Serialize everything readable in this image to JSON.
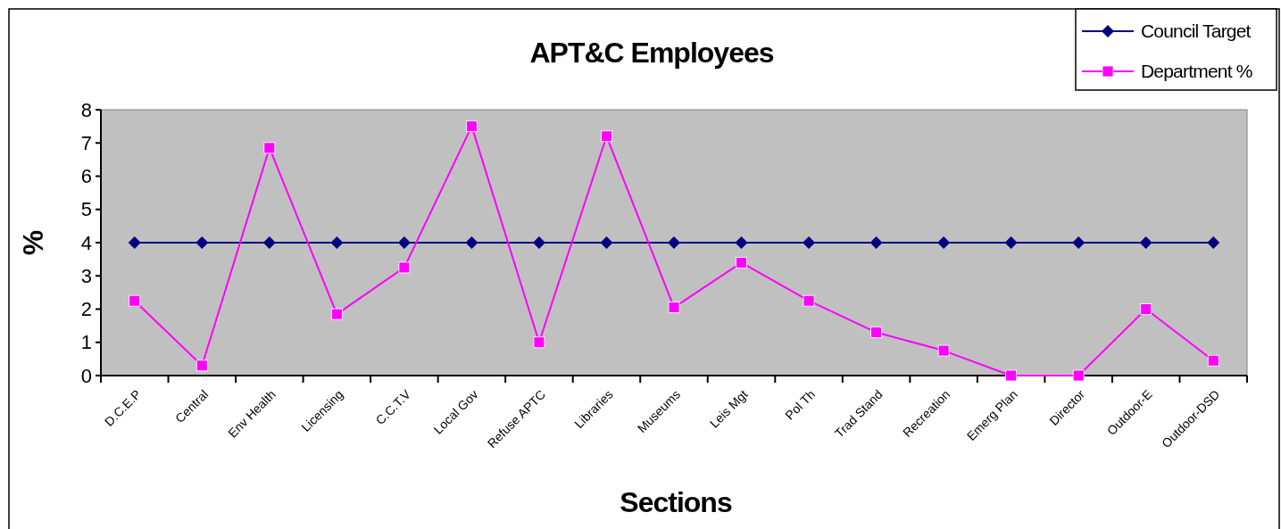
{
  "chart_data": {
    "type": "line",
    "title": "APT&C Employees",
    "xlabel": "Sections",
    "ylabel": "%",
    "categories": [
      "D.C.E.P",
      "Central",
      "Env Health",
      "Licensing",
      "C.C.T.V",
      "Local Gov",
      "Refuse APTC",
      "Libraries",
      "Museums",
      "Leis Mgt",
      "Pol Th",
      "Trad Stand",
      "Recreation",
      "Emerg Plan",
      "Director",
      "Outdoor-E",
      "Outdoor-DSD"
    ],
    "series": [
      {
        "name": "Council Target",
        "color": "#000080",
        "marker": "diamond",
        "values": [
          4,
          4,
          4,
          4,
          4,
          4,
          4,
          4,
          4,
          4,
          4,
          4,
          4,
          4,
          4,
          4,
          4
        ]
      },
      {
        "name": "Department %",
        "color": "#ff00ff",
        "marker": "square",
        "values": [
          2.25,
          0.3,
          6.85,
          1.85,
          3.25,
          7.5,
          1.0,
          7.2,
          2.05,
          3.4,
          2.25,
          1.3,
          0.75,
          0,
          0,
          2.0,
          0.45
        ]
      }
    ],
    "ylim": [
      0,
      8
    ],
    "yticks": [
      0,
      1,
      2,
      3,
      4,
      5,
      6,
      7,
      8
    ],
    "legend": "top right",
    "grid": false
  }
}
